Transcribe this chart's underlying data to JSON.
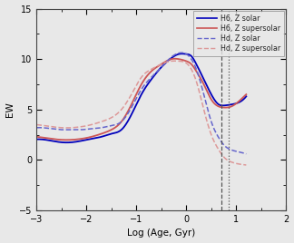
{
  "title": "",
  "xlabel": "Log (Age, Gyr)",
  "ylabel": "EW",
  "xlim": [
    -3,
    2
  ],
  "ylim": [
    -5,
    15
  ],
  "xticks": [
    -3,
    -2,
    -1,
    0,
    1,
    2
  ],
  "yticks": [
    -5,
    0,
    5,
    10,
    15
  ],
  "vline_dashed_x": 0.7,
  "vline_dotted_x": 0.85,
  "bg_color": "#e8e8e8",
  "plot_bg": "#e8e8e8",
  "colors": {
    "H6_solar": "#0000bb",
    "H6_supersolar": "#cc5555",
    "Hd_solar": "#6666cc",
    "Hd_supersolar": "#dd9999"
  },
  "legend_entries": [
    "H6, Z solar",
    "H6, Z supersolar",
    "Hd, Z solar",
    "Hd, Z supersolar"
  ],
  "H6_solar_x": [
    -3.0,
    -2.7,
    -2.5,
    -2.3,
    -2.1,
    -1.9,
    -1.7,
    -1.5,
    -1.3,
    -1.1,
    -0.9,
    -0.7,
    -0.5,
    -0.3,
    -0.15,
    0.0,
    0.1,
    0.2,
    0.35,
    0.5,
    0.65,
    0.75,
    0.9,
    1.05,
    1.2
  ],
  "H6_solar_y": [
    2.05,
    1.9,
    1.75,
    1.75,
    1.9,
    2.1,
    2.3,
    2.6,
    3.0,
    4.5,
    6.5,
    8.0,
    9.2,
    10.1,
    10.5,
    10.5,
    10.3,
    9.5,
    8.0,
    6.5,
    5.5,
    5.4,
    5.5,
    5.7,
    6.3
  ],
  "H6_supersolar_x": [
    -3.0,
    -2.7,
    -2.5,
    -2.3,
    -2.1,
    -1.9,
    -1.7,
    -1.5,
    -1.3,
    -1.1,
    -0.9,
    -0.7,
    -0.5,
    -0.3,
    -0.15,
    0.0,
    0.1,
    0.2,
    0.35,
    0.5,
    0.65,
    0.75,
    0.9,
    1.05,
    1.2
  ],
  "H6_supersolar_y": [
    2.3,
    2.1,
    2.0,
    2.0,
    2.1,
    2.3,
    2.6,
    3.0,
    3.8,
    5.5,
    7.5,
    8.8,
    9.5,
    10.0,
    10.0,
    9.8,
    9.5,
    8.8,
    7.5,
    6.0,
    5.3,
    5.2,
    5.3,
    5.8,
    6.5
  ],
  "Hd_solar_x": [
    -3.0,
    -2.7,
    -2.5,
    -2.3,
    -2.1,
    -1.9,
    -1.7,
    -1.5,
    -1.3,
    -1.1,
    -0.9,
    -0.7,
    -0.5,
    -0.3,
    -0.15,
    0.0,
    0.1,
    0.2,
    0.35,
    0.5,
    0.65,
    0.75,
    0.9,
    1.05,
    1.2
  ],
  "Hd_solar_y": [
    3.2,
    3.1,
    3.0,
    3.0,
    3.0,
    3.1,
    3.2,
    3.4,
    3.8,
    5.2,
    7.0,
    8.2,
    9.2,
    10.2,
    10.6,
    10.5,
    10.0,
    9.0,
    6.5,
    3.8,
    2.2,
    1.5,
    1.0,
    0.8,
    0.6
  ],
  "Hd_supersolar_x": [
    -3.0,
    -2.7,
    -2.5,
    -2.3,
    -2.1,
    -1.9,
    -1.7,
    -1.5,
    -1.3,
    -1.1,
    -0.9,
    -0.7,
    -0.5,
    -0.3,
    -0.15,
    0.0,
    0.1,
    0.2,
    0.35,
    0.5,
    0.65,
    0.75,
    0.9,
    1.05,
    1.2
  ],
  "Hd_supersolar_y": [
    3.5,
    3.3,
    3.2,
    3.2,
    3.3,
    3.5,
    3.8,
    4.2,
    5.0,
    6.5,
    8.2,
    9.0,
    9.5,
    9.8,
    9.8,
    9.6,
    9.0,
    7.8,
    5.0,
    2.5,
    1.0,
    0.3,
    -0.2,
    -0.4,
    -0.5
  ]
}
